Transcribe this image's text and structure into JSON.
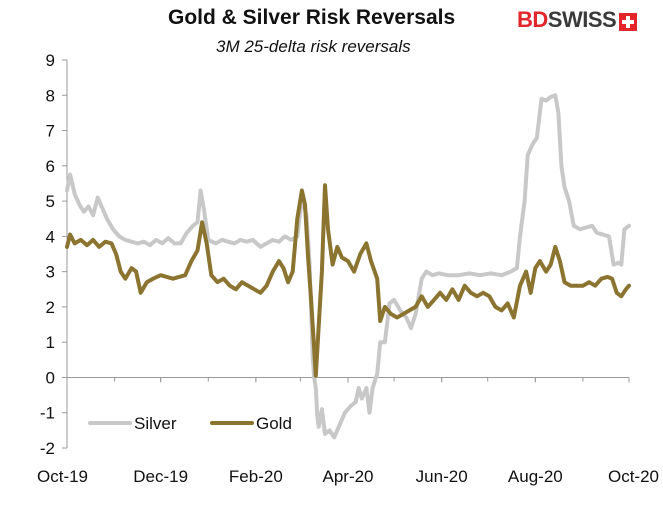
{
  "header": {
    "title": "Gold & Silver Risk Reversals",
    "subtitle": "3M 25-delta risk reversals",
    "logo_text_a": "BD",
    "logo_text_b": "SWISS"
  },
  "colors": {
    "silver": "#c8c8c8",
    "gold": "#8b7330",
    "axis": "#9a9a9a",
    "brand_red": "#e3262b"
  },
  "chart_data": {
    "type": "line",
    "title": "Gold & Silver Risk Reversals",
    "subtitle": "3M 25-delta risk reversals",
    "xlabel": "",
    "ylabel": "",
    "ylim": [
      -2,
      9
    ],
    "yticks": [
      -2,
      -1,
      0,
      1,
      2,
      3,
      4,
      5,
      6,
      7,
      8,
      9
    ],
    "xlim": [
      "2019-10-01",
      "2020-10-01"
    ],
    "xticks": [
      {
        "date": "2019-10-01",
        "label": "Oct-19"
      },
      {
        "date": "2019-12-01",
        "label": "Dec-19"
      },
      {
        "date": "2020-02-01",
        "label": "Feb-20"
      },
      {
        "date": "2020-04-01",
        "label": "Apr-20"
      },
      {
        "date": "2020-06-01",
        "label": "Jun-20"
      },
      {
        "date": "2020-08-01",
        "label": "Aug-20"
      },
      {
        "date": "2020-10-01",
        "label": "Oct-20"
      }
    ],
    "grid": false,
    "legend": "bottom-left",
    "series": [
      {
        "name": "Silver",
        "points": [
          [
            "2019-10-01",
            5.3
          ],
          [
            "2019-10-03",
            5.75
          ],
          [
            "2019-10-06",
            5.2
          ],
          [
            "2019-10-09",
            4.9
          ],
          [
            "2019-10-12",
            4.7
          ],
          [
            "2019-10-15",
            4.85
          ],
          [
            "2019-10-18",
            4.6
          ],
          [
            "2019-10-21",
            5.1
          ],
          [
            "2019-10-24",
            4.8
          ],
          [
            "2019-10-27",
            4.5
          ],
          [
            "2019-10-31",
            4.2
          ],
          [
            "2019-11-04",
            4.0
          ],
          [
            "2019-11-08",
            3.9
          ],
          [
            "2019-11-12",
            3.85
          ],
          [
            "2019-11-16",
            3.8
          ],
          [
            "2019-11-20",
            3.85
          ],
          [
            "2019-11-24",
            3.75
          ],
          [
            "2019-11-28",
            3.9
          ],
          [
            "2019-12-02",
            3.8
          ],
          [
            "2019-12-06",
            3.95
          ],
          [
            "2019-12-10",
            3.8
          ],
          [
            "2019-12-14",
            3.8
          ],
          [
            "2019-12-18",
            4.1
          ],
          [
            "2019-12-22",
            4.3
          ],
          [
            "2019-12-25",
            4.4
          ],
          [
            "2019-12-27",
            5.3
          ],
          [
            "2019-12-29",
            4.8
          ],
          [
            "2020-01-01",
            3.9
          ],
          [
            "2020-01-06",
            3.8
          ],
          [
            "2020-01-10",
            3.9
          ],
          [
            "2020-01-14",
            3.85
          ],
          [
            "2020-01-18",
            3.8
          ],
          [
            "2020-01-22",
            3.9
          ],
          [
            "2020-01-26",
            3.85
          ],
          [
            "2020-01-30",
            3.9
          ],
          [
            "2020-02-04",
            3.7
          ],
          [
            "2020-02-08",
            3.8
          ],
          [
            "2020-02-12",
            3.9
          ],
          [
            "2020-02-16",
            3.85
          ],
          [
            "2020-02-20",
            4.0
          ],
          [
            "2020-02-24",
            3.9
          ],
          [
            "2020-02-28",
            4.0
          ],
          [
            "2020-03-02",
            5.1
          ],
          [
            "2020-03-05",
            4.6
          ],
          [
            "2020-03-07",
            3.2
          ],
          [
            "2020-03-09",
            0.6
          ],
          [
            "2020-03-10",
            0.0
          ],
          [
            "2020-03-11",
            -0.3
          ],
          [
            "2020-03-12",
            -1.1
          ],
          [
            "2020-03-13",
            -1.4
          ],
          [
            "2020-03-15",
            -0.9
          ],
          [
            "2020-03-17",
            -1.6
          ],
          [
            "2020-03-20",
            -1.5
          ],
          [
            "2020-03-23",
            -1.7
          ],
          [
            "2020-03-26",
            -1.4
          ],
          [
            "2020-03-30",
            -1.0
          ],
          [
            "2020-04-03",
            -0.8
          ],
          [
            "2020-04-06",
            -0.7
          ],
          [
            "2020-04-08",
            -0.3
          ],
          [
            "2020-04-10",
            -0.6
          ],
          [
            "2020-04-13",
            -0.3
          ],
          [
            "2020-04-15",
            -1.0
          ],
          [
            "2020-04-17",
            -0.3
          ],
          [
            "2020-04-20",
            0.1
          ],
          [
            "2020-04-22",
            1.0
          ],
          [
            "2020-04-25",
            1.0
          ],
          [
            "2020-04-28",
            2.1
          ],
          [
            "2020-05-01",
            2.2
          ],
          [
            "2020-05-05",
            1.9
          ],
          [
            "2020-05-09",
            1.7
          ],
          [
            "2020-05-12",
            1.4
          ],
          [
            "2020-05-15",
            1.8
          ],
          [
            "2020-05-19",
            2.8
          ],
          [
            "2020-05-22",
            3.0
          ],
          [
            "2020-05-26",
            2.9
          ],
          [
            "2020-05-30",
            2.95
          ],
          [
            "2020-06-05",
            2.9
          ],
          [
            "2020-06-12",
            2.9
          ],
          [
            "2020-06-19",
            2.95
          ],
          [
            "2020-06-26",
            2.9
          ],
          [
            "2020-07-03",
            2.95
          ],
          [
            "2020-07-10",
            2.9
          ],
          [
            "2020-07-16",
            3.0
          ],
          [
            "2020-07-20",
            3.1
          ],
          [
            "2020-07-22",
            4.0
          ],
          [
            "2020-07-25",
            5.0
          ],
          [
            "2020-07-27",
            6.3
          ],
          [
            "2020-07-30",
            6.6
          ],
          [
            "2020-08-02",
            6.8
          ],
          [
            "2020-08-05",
            7.9
          ],
          [
            "2020-08-08",
            7.85
          ],
          [
            "2020-08-11",
            7.95
          ],
          [
            "2020-08-14",
            8.0
          ],
          [
            "2020-08-16",
            7.5
          ],
          [
            "2020-08-18",
            6.0
          ],
          [
            "2020-08-20",
            5.4
          ],
          [
            "2020-08-23",
            5.0
          ],
          [
            "2020-08-26",
            4.3
          ],
          [
            "2020-08-30",
            4.2
          ],
          [
            "2020-09-03",
            4.25
          ],
          [
            "2020-09-07",
            4.3
          ],
          [
            "2020-09-10",
            4.1
          ],
          [
            "2020-09-14",
            4.05
          ],
          [
            "2020-09-18",
            4.0
          ],
          [
            "2020-09-21",
            3.2
          ],
          [
            "2020-09-24",
            3.25
          ],
          [
            "2020-09-26",
            3.2
          ],
          [
            "2020-09-28",
            4.2
          ],
          [
            "2020-10-01",
            4.3
          ]
        ]
      },
      {
        "name": "Gold",
        "points": [
          [
            "2019-10-01",
            3.7
          ],
          [
            "2019-10-03",
            4.05
          ],
          [
            "2019-10-06",
            3.8
          ],
          [
            "2019-10-10",
            3.9
          ],
          [
            "2019-10-14",
            3.75
          ],
          [
            "2019-10-18",
            3.9
          ],
          [
            "2019-10-22",
            3.7
          ],
          [
            "2019-10-26",
            3.85
          ],
          [
            "2019-10-30",
            3.8
          ],
          [
            "2019-11-02",
            3.5
          ],
          [
            "2019-11-05",
            3.0
          ],
          [
            "2019-11-08",
            2.8
          ],
          [
            "2019-11-12",
            3.1
          ],
          [
            "2019-11-15",
            3.0
          ],
          [
            "2019-11-18",
            2.4
          ],
          [
            "2019-11-22",
            2.7
          ],
          [
            "2019-11-26",
            2.8
          ],
          [
            "2019-12-01",
            2.9
          ],
          [
            "2019-12-05",
            2.85
          ],
          [
            "2019-12-09",
            2.8
          ],
          [
            "2019-12-13",
            2.85
          ],
          [
            "2019-12-17",
            2.9
          ],
          [
            "2019-12-21",
            3.3
          ],
          [
            "2019-12-25",
            3.6
          ],
          [
            "2019-12-28",
            4.4
          ],
          [
            "2019-12-31",
            3.8
          ],
          [
            "2020-01-03",
            2.9
          ],
          [
            "2020-01-07",
            2.7
          ],
          [
            "2020-01-11",
            2.8
          ],
          [
            "2020-01-15",
            2.6
          ],
          [
            "2020-01-19",
            2.5
          ],
          [
            "2020-01-23",
            2.7
          ],
          [
            "2020-01-27",
            2.6
          ],
          [
            "2020-01-31",
            2.5
          ],
          [
            "2020-02-04",
            2.4
          ],
          [
            "2020-02-08",
            2.6
          ],
          [
            "2020-02-12",
            3.0
          ],
          [
            "2020-02-16",
            3.3
          ],
          [
            "2020-02-19",
            3.1
          ],
          [
            "2020-02-22",
            2.7
          ],
          [
            "2020-02-25",
            3.0
          ],
          [
            "2020-02-28",
            4.5
          ],
          [
            "2020-03-02",
            5.3
          ],
          [
            "2020-03-04",
            4.9
          ],
          [
            "2020-03-06",
            3.4
          ],
          [
            "2020-03-08",
            2.2
          ],
          [
            "2020-03-10",
            0.8
          ],
          [
            "2020-03-11",
            0.05
          ],
          [
            "2020-03-13",
            1.5
          ],
          [
            "2020-03-15",
            3.0
          ],
          [
            "2020-03-17",
            5.45
          ],
          [
            "2020-03-19",
            4.2
          ],
          [
            "2020-03-22",
            3.2
          ],
          [
            "2020-03-25",
            3.7
          ],
          [
            "2020-03-28",
            3.4
          ],
          [
            "2020-04-01",
            3.3
          ],
          [
            "2020-04-05",
            3.0
          ],
          [
            "2020-04-09",
            3.5
          ],
          [
            "2020-04-13",
            3.8
          ],
          [
            "2020-04-16",
            3.3
          ],
          [
            "2020-04-20",
            2.8
          ],
          [
            "2020-04-22",
            1.6
          ],
          [
            "2020-04-25",
            2.0
          ],
          [
            "2020-04-29",
            1.8
          ],
          [
            "2020-05-03",
            1.7
          ],
          [
            "2020-05-07",
            1.8
          ],
          [
            "2020-05-11",
            1.9
          ],
          [
            "2020-05-15",
            2.0
          ],
          [
            "2020-05-19",
            2.3
          ],
          [
            "2020-05-23",
            2.0
          ],
          [
            "2020-05-27",
            2.2
          ],
          [
            "2020-05-31",
            2.4
          ],
          [
            "2020-06-04",
            2.2
          ],
          [
            "2020-06-08",
            2.5
          ],
          [
            "2020-06-12",
            2.2
          ],
          [
            "2020-06-16",
            2.6
          ],
          [
            "2020-06-20",
            2.4
          ],
          [
            "2020-06-24",
            2.3
          ],
          [
            "2020-06-28",
            2.4
          ],
          [
            "2020-07-02",
            2.3
          ],
          [
            "2020-07-06",
            2.0
          ],
          [
            "2020-07-10",
            1.9
          ],
          [
            "2020-07-14",
            2.1
          ],
          [
            "2020-07-18",
            1.7
          ],
          [
            "2020-07-22",
            2.6
          ],
          [
            "2020-07-26",
            3.0
          ],
          [
            "2020-07-29",
            2.4
          ],
          [
            "2020-08-01",
            3.1
          ],
          [
            "2020-08-04",
            3.3
          ],
          [
            "2020-08-08",
            3.0
          ],
          [
            "2020-08-11",
            3.2
          ],
          [
            "2020-08-14",
            3.7
          ],
          [
            "2020-08-17",
            3.3
          ],
          [
            "2020-08-20",
            2.7
          ],
          [
            "2020-08-24",
            2.6
          ],
          [
            "2020-08-28",
            2.6
          ],
          [
            "2020-09-01",
            2.6
          ],
          [
            "2020-09-05",
            2.7
          ],
          [
            "2020-09-09",
            2.6
          ],
          [
            "2020-09-13",
            2.8
          ],
          [
            "2020-09-17",
            2.85
          ],
          [
            "2020-09-20",
            2.8
          ],
          [
            "2020-09-23",
            2.4
          ],
          [
            "2020-09-26",
            2.3
          ],
          [
            "2020-09-29",
            2.5
          ],
          [
            "2020-10-01",
            2.6
          ]
        ]
      }
    ]
  }
}
